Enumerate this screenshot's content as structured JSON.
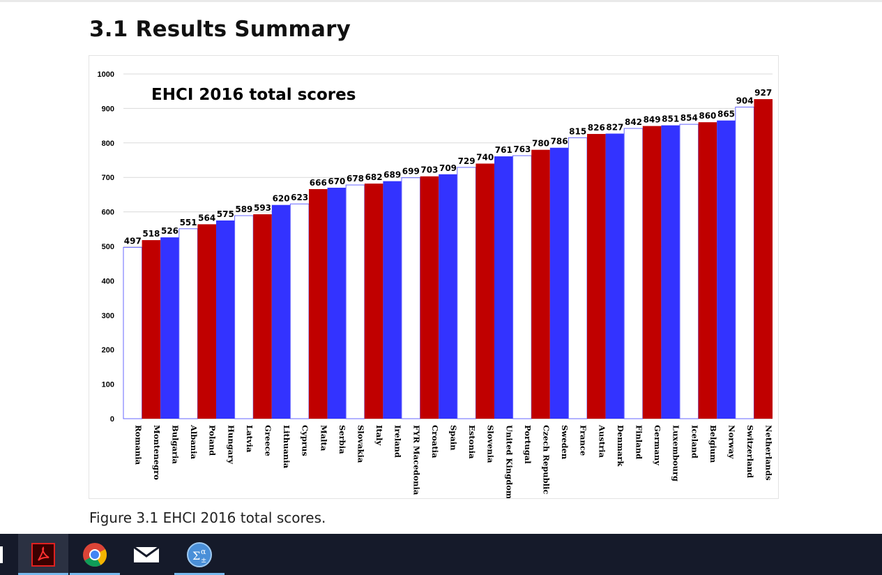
{
  "document": {
    "heading": "3.1  Results Summary",
    "caption": "Figure 3.1 EHCI 2016 total scores."
  },
  "chart_data": {
    "type": "bar",
    "title": "EHCI 2016 total scores",
    "xlabel": "",
    "ylabel": "",
    "ylim": [
      0,
      1000
    ],
    "yticks": [
      0,
      100,
      200,
      300,
      400,
      500,
      600,
      700,
      800,
      900,
      1000
    ],
    "grid": true,
    "legend": "none",
    "categories": [
      "Romania",
      "Montenegro",
      "Bulgaria",
      "Albania",
      "Poland",
      "Hungary",
      "Latvia",
      "Greece",
      "Lithuania",
      "Cyprus",
      "Malta",
      "Serbia",
      "Slovakia",
      "Italy",
      "Ireland",
      "FYR Macedonia",
      "Croatia",
      "Spain",
      "Estonia",
      "Slovenia",
      "United Kingdom",
      "Portugal",
      "Czech Republic",
      "Sweden",
      "France",
      "Austria",
      "Denmark",
      "Finland",
      "Germany",
      "Luxembourg",
      "Iceland",
      "Belgium",
      "Norway",
      "Switzerland",
      "Netherlands"
    ],
    "values": [
      497,
      518,
      526,
      551,
      564,
      575,
      589,
      593,
      620,
      623,
      666,
      670,
      678,
      682,
      689,
      699,
      703,
      709,
      729,
      740,
      761,
      763,
      780,
      786,
      815,
      826,
      827,
      842,
      849,
      851,
      854,
      860,
      865,
      904,
      927
    ],
    "bar_colors": [
      "#ffffff",
      "#c00000",
      "#3333ff",
      "#ffffff",
      "#c00000",
      "#3333ff",
      "#ffffff",
      "#c00000",
      "#3333ff",
      "#ffffff",
      "#c00000",
      "#3333ff",
      "#ffffff",
      "#c00000",
      "#3333ff",
      "#ffffff",
      "#c00000",
      "#3333ff",
      "#ffffff",
      "#c00000",
      "#3333ff",
      "#ffffff",
      "#c00000",
      "#3333ff",
      "#ffffff",
      "#c00000",
      "#3333ff",
      "#ffffff",
      "#c00000",
      "#3333ff",
      "#ffffff",
      "#c00000",
      "#3333ff",
      "#ffffff",
      "#c00000"
    ]
  },
  "taskbar": {
    "apps": [
      {
        "icon": "acrobat-reader-icon",
        "active": true
      },
      {
        "icon": "chrome-icon",
        "active": false
      },
      {
        "icon": "mail-icon",
        "active": false
      },
      {
        "icon": "math-input-icon",
        "active": false
      }
    ]
  },
  "colors": {
    "red_bar": "#c00000",
    "blue_bar": "#3333ff",
    "white_bar_outline": "#6666ff",
    "taskbar": "#151a2a"
  }
}
